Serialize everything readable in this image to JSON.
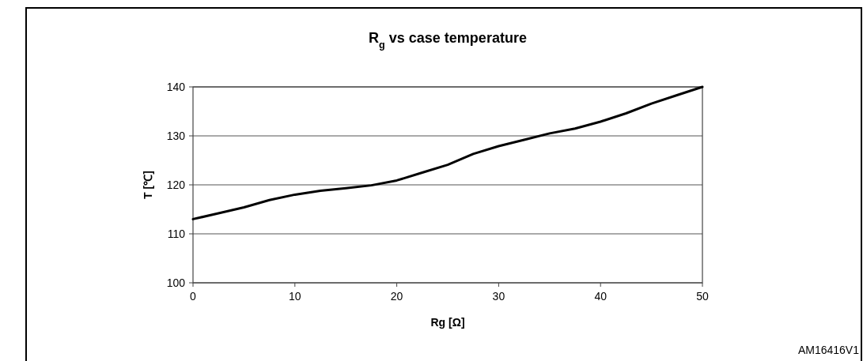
{
  "chart_data": {
    "type": "line",
    "title": "R$_{g}$ vs case temperature",
    "xlabel": "Rg [Ω]",
    "ylabel": "T [℃]",
    "x": [
      0,
      2.5,
      5,
      7.5,
      10,
      12.5,
      15,
      17.5,
      20,
      22.5,
      25,
      27.5,
      30,
      32.5,
      35,
      37.5,
      40,
      42.5,
      45,
      47.5,
      50
    ],
    "series": [
      {
        "color": "#000000",
        "values": [
          113,
          114.2,
          115.4,
          116.9,
          118,
          118.8,
          119.3,
          119.9,
          120.9,
          122.5,
          124.1,
          126.3,
          127.9,
          129.2,
          130.5,
          131.5,
          132.9,
          134.6,
          136.6,
          138.3,
          140
        ]
      }
    ],
    "xlim": [
      0,
      50
    ],
    "xticks": [
      0,
      10,
      20,
      30,
      40,
      50
    ],
    "ylim": [
      100,
      140
    ],
    "yticks": [
      100,
      110,
      120,
      130,
      140
    ],
    "grid": "y",
    "marker": "none",
    "line_style": "solid",
    "annotations": [
      "AM16416V1"
    ]
  }
}
